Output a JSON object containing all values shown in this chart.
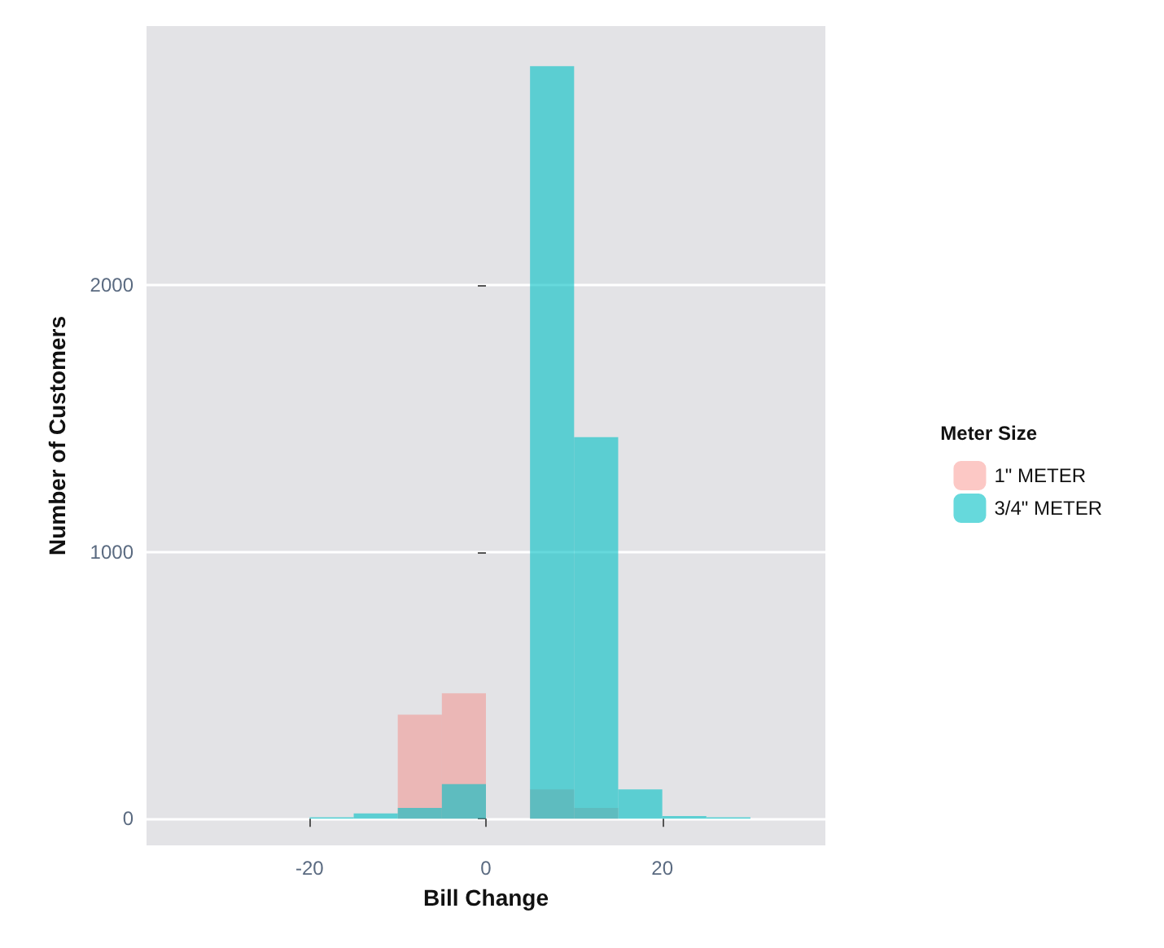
{
  "chart_data": {
    "type": "histogram",
    "xlabel": "Bill Change",
    "ylabel": "Number of Customers",
    "legend_title": "Meter Size",
    "bins": [
      -20,
      -15,
      -10,
      -5,
      0,
      5,
      10,
      15,
      20,
      25,
      30
    ],
    "series": [
      {
        "name": "1\" METER",
        "color": "#f8766d",
        "values": [
          0,
          null,
          390,
          470,
          0,
          110,
          40,
          0,
          0,
          0
        ]
      },
      {
        "name": "3/4\" METER",
        "color": "#00bfc4",
        "values": [
          5,
          20,
          40,
          130,
          0,
          2820,
          1430,
          110,
          10,
          5
        ]
      }
    ],
    "xlim": [
      -38.5,
      38.5
    ],
    "ylim": [
      -100,
      2970
    ],
    "xticks": [
      -20,
      0,
      20
    ],
    "yticks": [
      0,
      1000,
      2000
    ],
    "grid": "y",
    "legend": "right"
  }
}
